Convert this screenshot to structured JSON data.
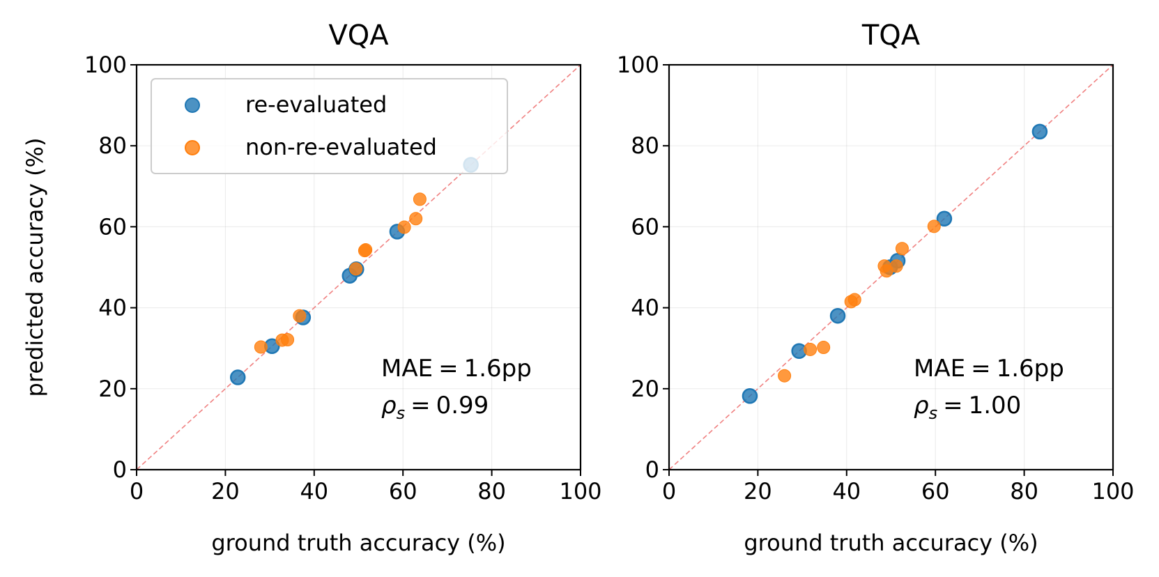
{
  "chart_data": [
    {
      "type": "scatter",
      "title": "VQA",
      "xlabel": "ground truth accuracy (%)",
      "ylabel": "predicted accuracy (%)",
      "xlim": [
        0,
        100
      ],
      "ylim": [
        0,
        100
      ],
      "xticks": [
        0,
        20,
        40,
        60,
        80,
        100
      ],
      "yticks": [
        0,
        20,
        40,
        60,
        80,
        100
      ],
      "grid": true,
      "reference_line": "y = x",
      "legend_position": "upper-left",
      "legend": [
        "re-evaluated",
        "non-re-evaluated"
      ],
      "series": [
        {
          "name": "re-evaluated",
          "color": "#1f77b4",
          "points": [
            [
              22.8,
              22.8
            ],
            [
              30.5,
              30.5
            ],
            [
              37.5,
              37.6
            ],
            [
              48.0,
              47.9
            ],
            [
              49.5,
              49.5
            ],
            [
              58.7,
              58.8
            ],
            [
              75.3,
              75.3
            ]
          ]
        },
        {
          "name": "non-re-evaluated",
          "color": "#ff7f0e",
          "points": [
            [
              28.0,
              30.3
            ],
            [
              32.8,
              32.0
            ],
            [
              34.0,
              32.1
            ],
            [
              36.7,
              38.0
            ],
            [
              49.4,
              49.6
            ],
            [
              51.4,
              54.1
            ],
            [
              51.6,
              54.3
            ],
            [
              60.3,
              59.9
            ],
            [
              62.9,
              62.0
            ],
            [
              63.8,
              66.8
            ]
          ]
        }
      ],
      "annotations": {
        "mae": "1.6pp",
        "rho": "0.99"
      }
    },
    {
      "type": "scatter",
      "title": "TQA",
      "xlabel": "ground truth accuracy (%)",
      "ylabel": "",
      "xlim": [
        0,
        100
      ],
      "ylim": [
        0,
        100
      ],
      "xticks": [
        0,
        20,
        40,
        60,
        80,
        100
      ],
      "yticks": [
        0,
        20,
        40,
        60,
        80,
        100
      ],
      "grid": true,
      "reference_line": "y = x",
      "series": [
        {
          "name": "re-evaluated",
          "color": "#1f77b4",
          "points": [
            [
              18.2,
              18.2
            ],
            [
              29.3,
              29.3
            ],
            [
              38.0,
              38.0
            ],
            [
              49.8,
              50.0
            ],
            [
              51.5,
              51.6
            ],
            [
              62.0,
              62.0
            ],
            [
              83.5,
              83.5
            ]
          ]
        },
        {
          "name": "non-re-evaluated",
          "color": "#ff7f0e",
          "points": [
            [
              26.0,
              23.2
            ],
            [
              31.8,
              29.7
            ],
            [
              34.8,
              30.2
            ],
            [
              41.0,
              41.5
            ],
            [
              41.8,
              42.0
            ],
            [
              48.5,
              50.3
            ],
            [
              49.0,
              49.1
            ],
            [
              51.2,
              50.3
            ],
            [
              52.5,
              54.6
            ],
            [
              59.7,
              60.1
            ]
          ]
        }
      ],
      "annotations": {
        "mae": "1.6pp",
        "rho": "1.00"
      }
    }
  ]
}
